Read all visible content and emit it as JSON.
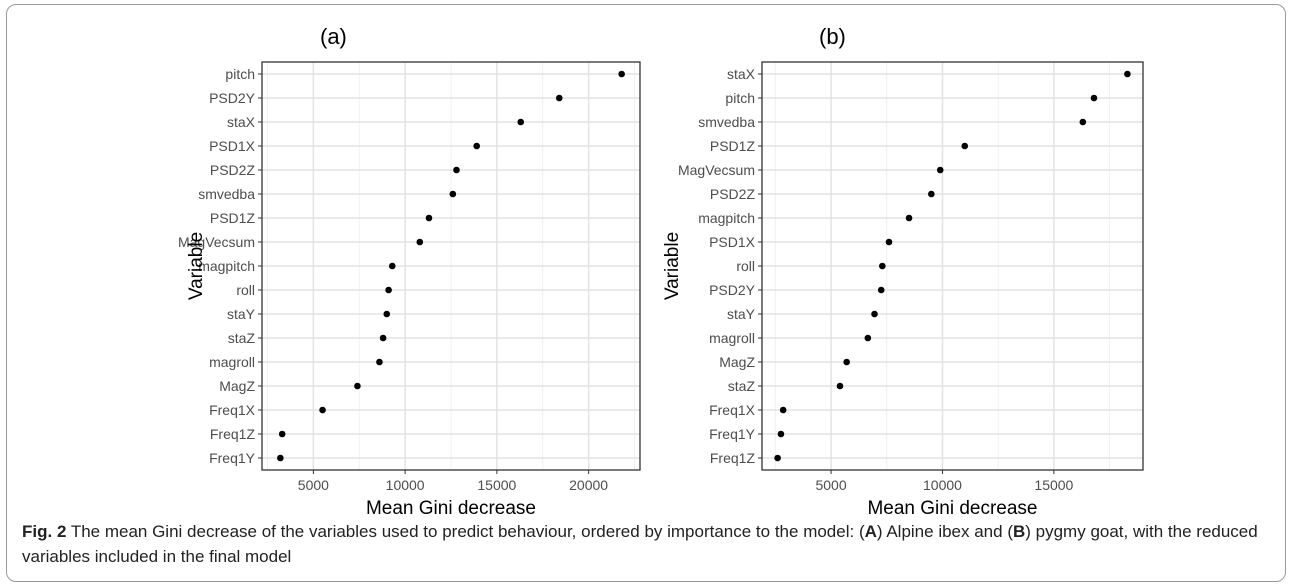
{
  "chart_data": [
    {
      "type": "scatter",
      "panel_label": "(a)",
      "xlabel": "Mean Gini decrease",
      "ylabel": "Variable",
      "xlim": [
        2200,
        22800
      ],
      "xticks": [
        5000,
        10000,
        15000,
        20000
      ],
      "grid": true,
      "categories": [
        "pitch",
        "PSD2Y",
        "staX",
        "PSD1X",
        "PSD2Z",
        "smvedba",
        "PSD1Z",
        "MagVecsum",
        "magpitch",
        "roll",
        "staY",
        "staZ",
        "magroll",
        "MagZ",
        "Freq1X",
        "Freq1Z",
        "Freq1Y"
      ],
      "values": [
        21800,
        18400,
        16300,
        13900,
        12800,
        12600,
        11300,
        10800,
        9300,
        9100,
        9000,
        8800,
        8600,
        7400,
        5500,
        3300,
        3200
      ]
    },
    {
      "type": "scatter",
      "panel_label": "(b)",
      "xlabel": "Mean Gini decrease",
      "ylabel": "Variable",
      "xlim": [
        1900,
        19000
      ],
      "xticks": [
        5000,
        10000,
        15000
      ],
      "grid": true,
      "categories": [
        "staX",
        "pitch",
        "smvedba",
        "PSD1Z",
        "MagVecsum",
        "PSD2Z",
        "magpitch",
        "PSD1X",
        "roll",
        "PSD2Y",
        "staY",
        "magroll",
        "MagZ",
        "staZ",
        "Freq1X",
        "Freq1Y",
        "Freq1Z"
      ],
      "values": [
        18300,
        16800,
        16300,
        11000,
        9900,
        9500,
        8500,
        7600,
        7300,
        7250,
        6950,
        6650,
        5700,
        5400,
        2850,
        2750,
        2600
      ]
    }
  ],
  "caption": {
    "fig": "Fig. 2",
    "pre": " The mean Gini decrease of the variables used to predict behaviour, ordered by importance to the model: (",
    "a": "A",
    "mid": ") Alpine ibex and (",
    "b": "B",
    "post": ") pygmy goat, with the reduced variables included in the final model"
  }
}
